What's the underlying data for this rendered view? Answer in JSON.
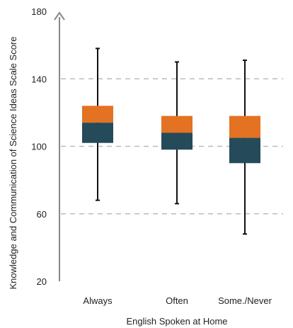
{
  "chart_data": {
    "type": "box",
    "xlabel": "English Spoken at Home",
    "ylabel": "Knowledge and Communication of Science Ideas Scale Score",
    "ylim": [
      20,
      180
    ],
    "yticks": [
      20,
      60,
      100,
      140,
      180
    ],
    "grid": "horizontal dashed at 60, 100, 140",
    "categories": [
      "Always",
      "Often",
      "Some./Never"
    ],
    "boxes": [
      {
        "category": "Always",
        "min": 68,
        "q1": 102,
        "median": 114,
        "q3": 124,
        "max": 158
      },
      {
        "category": "Often",
        "min": 66,
        "q1": 98,
        "median": 108,
        "q3": 118,
        "max": 150
      },
      {
        "category": "Some./Never",
        "min": 48,
        "q1": 90,
        "median": 105,
        "q3": 118,
        "max": 151
      }
    ],
    "colors": {
      "upper_box": "#E37222",
      "lower_box": "#254A5A",
      "grid": "#BBBBBB",
      "axis": "#888888"
    }
  }
}
